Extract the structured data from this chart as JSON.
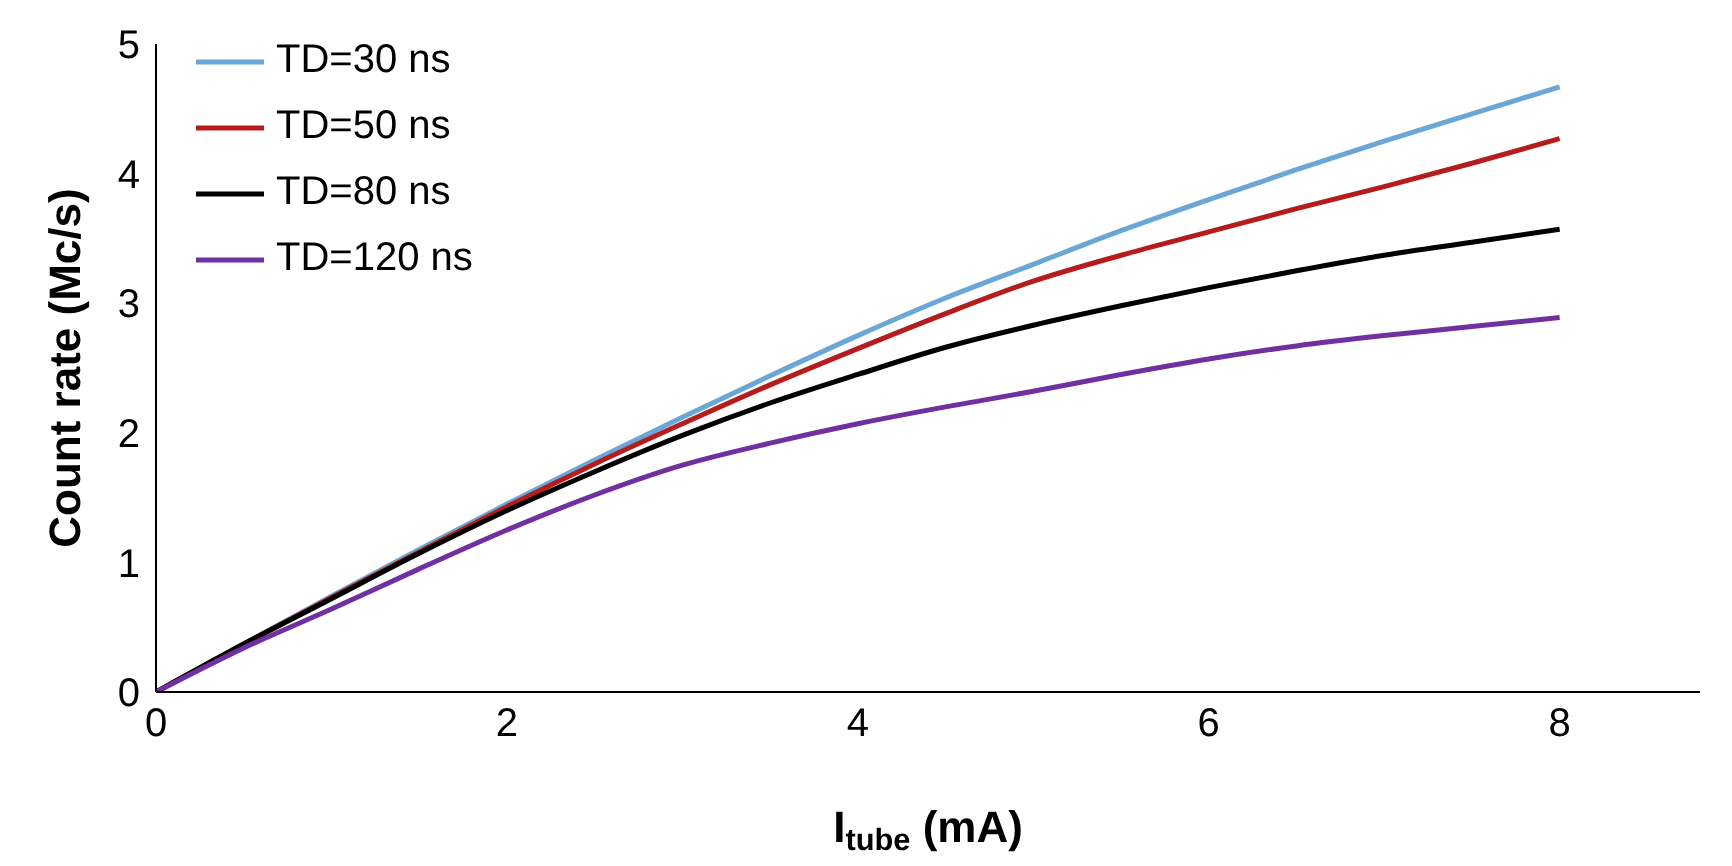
{
  "chart_data": {
    "type": "line",
    "xlabel": "I$_{tube}$ (mA)",
    "ylabel": "Count rate (Mc/s)",
    "x": [
      0,
      0.5,
      1,
      1.5,
      2,
      2.5,
      3,
      3.5,
      4,
      4.5,
      5,
      5.5,
      6,
      6.5,
      7,
      7.5,
      8
    ],
    "series": [
      {
        "name": "TD=30 ns",
        "color": "#6aa6d6",
        "values": [
          0,
          0.37,
          0.74,
          1.1,
          1.45,
          1.79,
          2.12,
          2.44,
          2.75,
          3.04,
          3.3,
          3.56,
          3.8,
          4.03,
          4.25,
          4.46,
          4.67
        ]
      },
      {
        "name": "TD=50 ns",
        "color": "#b51d1d",
        "values": [
          0,
          0.37,
          0.73,
          1.08,
          1.43,
          1.76,
          2.07,
          2.37,
          2.65,
          2.92,
          3.17,
          3.37,
          3.55,
          3.73,
          3.9,
          4.08,
          4.27
        ]
      },
      {
        "name": "TD=80 ns",
        "color": "#000000",
        "values": [
          0,
          0.37,
          0.72,
          1.07,
          1.4,
          1.7,
          1.98,
          2.23,
          2.45,
          2.66,
          2.83,
          2.98,
          3.12,
          3.25,
          3.37,
          3.47,
          3.57
        ]
      },
      {
        "name": "TD=120 ns",
        "color": "#7030a0",
        "values": [
          0,
          0.34,
          0.64,
          0.95,
          1.25,
          1.52,
          1.75,
          1.92,
          2.07,
          2.2,
          2.32,
          2.45,
          2.57,
          2.67,
          2.75,
          2.82,
          2.89
        ]
      }
    ],
    "xlim": [
      0,
      8.8
    ],
    "xticks": [
      0,
      2,
      4,
      6,
      8
    ],
    "ylim": [
      0,
      5
    ],
    "yticks": [
      0,
      1,
      2,
      3,
      4,
      5
    ],
    "grid": false,
    "legend": "top left",
    "marker": "none",
    "line_style": "solid"
  }
}
